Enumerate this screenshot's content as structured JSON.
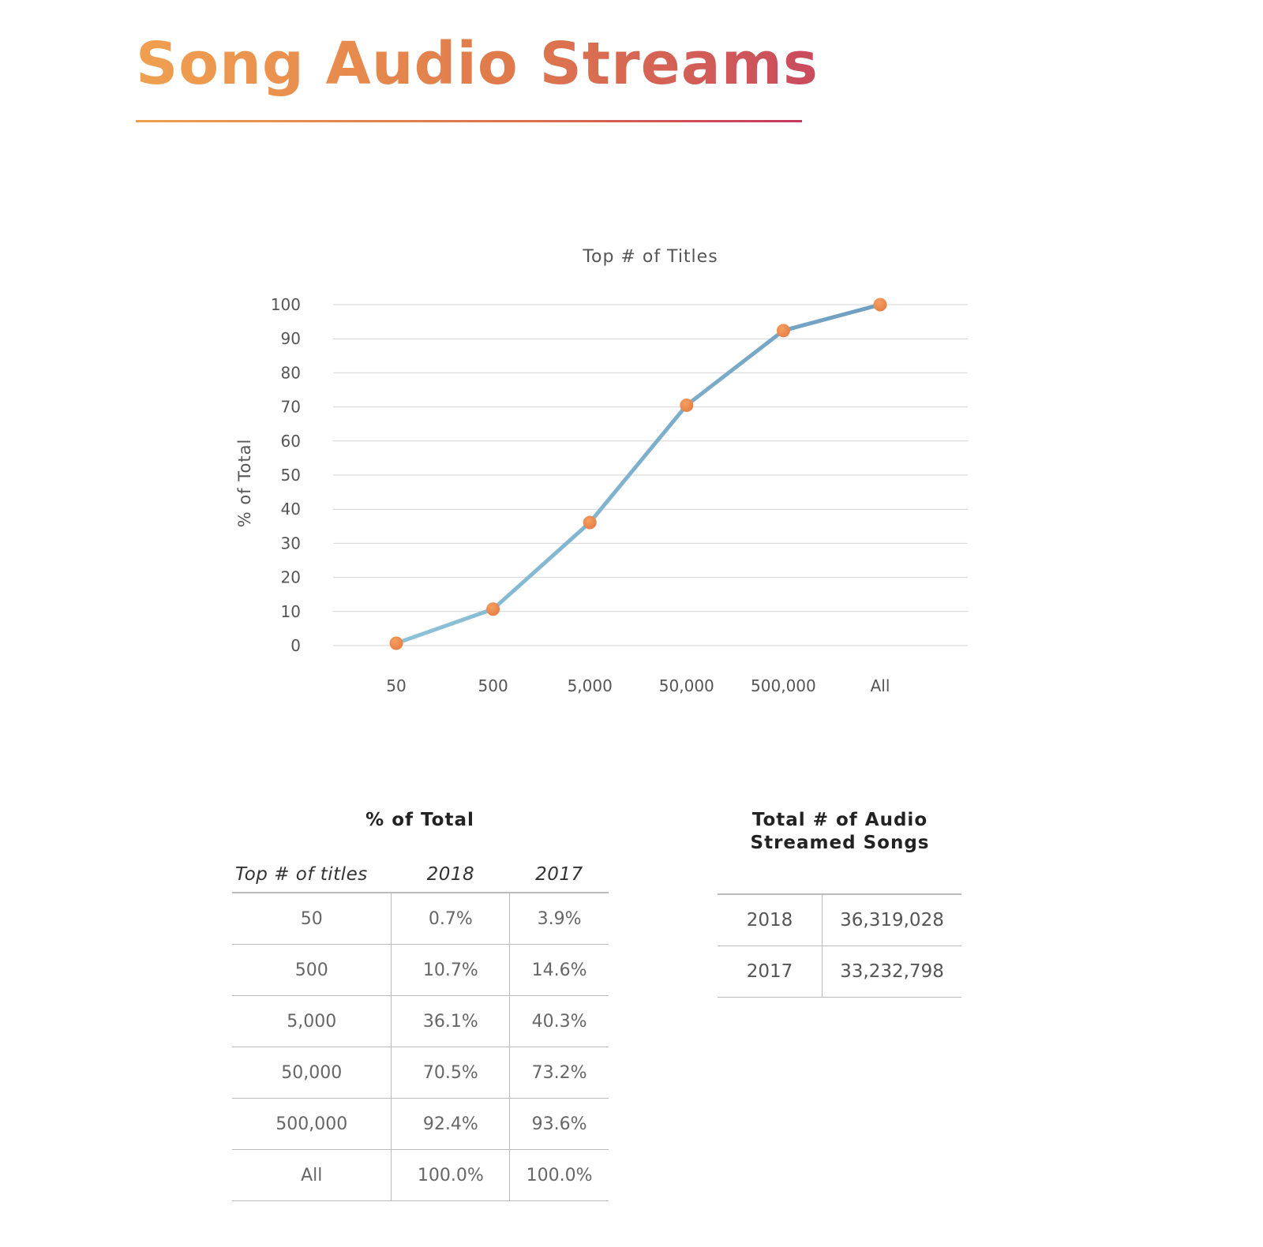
{
  "page": {
    "title": "Song Audio Streams"
  },
  "chart_data": {
    "type": "line",
    "title": "Top # of Titles",
    "xlabel": "",
    "ylabel": "% of Total",
    "categories": [
      "50",
      "500",
      "5,000",
      "50,000",
      "500,000",
      "All"
    ],
    "series": [
      {
        "values": [
          0.7,
          10.7,
          36.1,
          70.5,
          92.4,
          100.0
        ]
      }
    ],
    "ylim": [
      0,
      100
    ],
    "yticks": [
      "0",
      "10",
      "20",
      "30",
      "40",
      "50",
      "60",
      "70",
      "80",
      "90",
      "100"
    ],
    "grid": true,
    "colors": {
      "line": "#7aaac6",
      "marker": "#e87c45",
      "grid": "#d4d4d4"
    }
  },
  "pct_table": {
    "title": "% of Total",
    "headers": [
      "Top # of titles",
      "2018",
      "2017"
    ],
    "rows": [
      [
        "50",
        "0.7%",
        "3.9%"
      ],
      [
        "500",
        "10.7%",
        "14.6%"
      ],
      [
        "5,000",
        "36.1%",
        "40.3%"
      ],
      [
        "50,000",
        "70.5%",
        "73.2%"
      ],
      [
        "500,000",
        "92.4%",
        "93.6%"
      ],
      [
        "All",
        "100.0%",
        "100.0%"
      ]
    ]
  },
  "totals_table": {
    "title_line1": "Total # of Audio",
    "title_line2": "Streamed Songs",
    "rows": [
      [
        "2018",
        "36,319,028"
      ],
      [
        "2017",
        "33,232,798"
      ]
    ]
  }
}
